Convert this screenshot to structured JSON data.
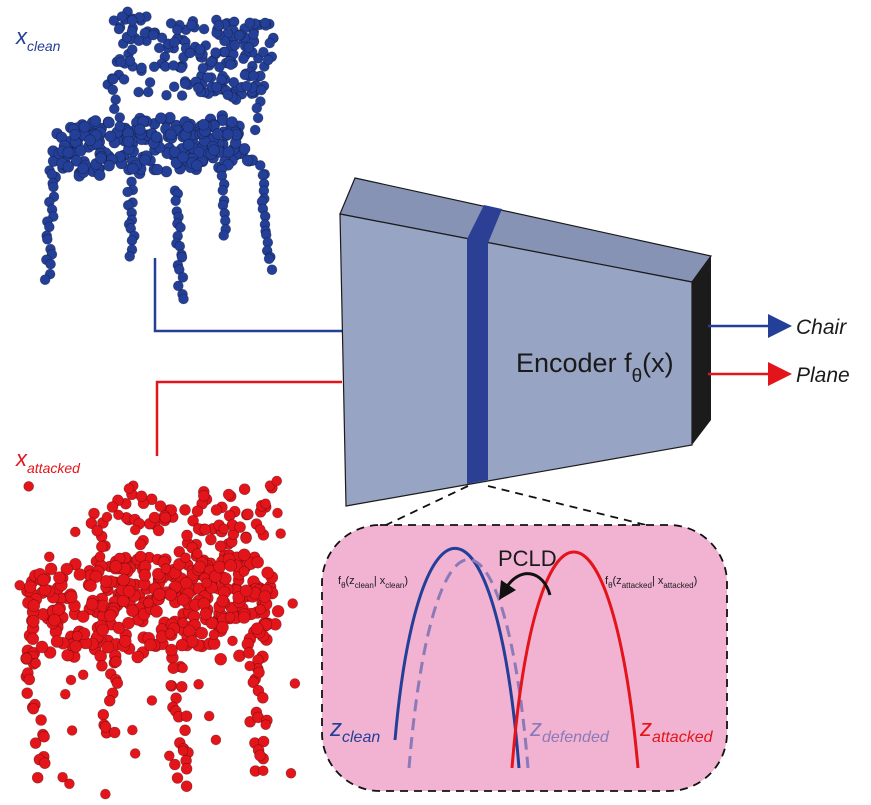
{
  "labels": {
    "x_clean": {
      "main": "x",
      "sub": "clean"
    },
    "x_attacked": {
      "main": "x",
      "sub": "attacked"
    },
    "encoder": {
      "text": "Encoder f",
      "sub": "θ",
      "arg": "(x)"
    },
    "output_clean": "Chair",
    "output_attacked": "Plane",
    "pcld": "PCLD",
    "density_clean": {
      "f": "f",
      "theta": "θ",
      "open": "(z",
      "z_sub": "clean",
      "bar": "| x",
      "x_sub": "clean",
      "close": ")"
    },
    "density_attacked": {
      "f": "f",
      "theta": "θ",
      "open": "(z",
      "z_sub": "attacked",
      "bar": "| x",
      "x_sub": "attacked",
      "close": ")"
    },
    "z_clean": {
      "main": "z",
      "sub": "clean"
    },
    "z_defended": {
      "main": "z",
      "sub": "defended"
    },
    "z_attacked": {
      "main": "z",
      "sub": "attacked"
    }
  },
  "colors": {
    "clean": "#243f97",
    "attacked": "#e3151a",
    "defended": "#8a7ab8",
    "encoder_face": "#98a4c3",
    "encoder_top": "#8793b5",
    "encoder_side": "#1b1b1b",
    "band": "#2b3f94",
    "panel": "#f2b3d2"
  }
}
